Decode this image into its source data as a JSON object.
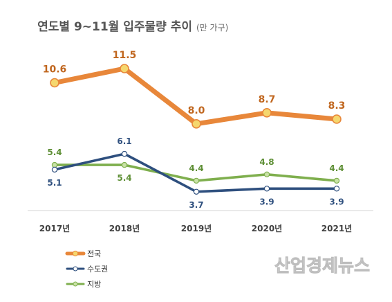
{
  "chart_data": {
    "type": "line",
    "title": "연도별 9~11월 입주물량 추이",
    "subtitle": "(만 가구)",
    "xlabel": "",
    "ylabel": "",
    "categories": [
      "2017년",
      "2018년",
      "2019년",
      "2020년",
      "2021년"
    ],
    "ylim": [
      0,
      13
    ],
    "grid": false,
    "legend_position": "bottom-left",
    "series": [
      {
        "name": "전국",
        "values": [
          10.6,
          11.5,
          8.0,
          8.7,
          8.3
        ],
        "labels": [
          "10.6",
          "11.5",
          "8.0",
          "8.7",
          "8.3"
        ],
        "color": "#E8873A",
        "marker_fill": "#F5D76E",
        "label_color": "#C0661E"
      },
      {
        "name": "수도권",
        "values": [
          5.1,
          6.1,
          3.7,
          3.9,
          3.9
        ],
        "labels": [
          "5.1",
          "6.1",
          "3.7",
          "3.9",
          "3.9"
        ],
        "color": "#2E4F7E",
        "marker_fill": "#ffffff",
        "label_color": "#2E4F7E"
      },
      {
        "name": "지방",
        "values": [
          5.4,
          5.4,
          4.4,
          4.8,
          4.4
        ],
        "labels": [
          "5.4",
          "5.4",
          "4.4",
          "4.8",
          "4.4"
        ],
        "color": "#7FAF4E",
        "marker_fill": "#C9E2A6",
        "label_color": "#5E8F35"
      }
    ]
  },
  "watermark": "산업경제뉴스"
}
